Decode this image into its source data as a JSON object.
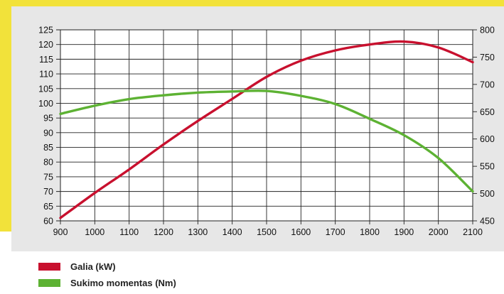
{
  "chart_data": {
    "type": "line",
    "x": [
      900,
      1000,
      1100,
      1200,
      1300,
      1400,
      1500,
      1600,
      1700,
      1800,
      1900,
      2000,
      2100
    ],
    "xlim": [
      900,
      2100
    ],
    "ylim_left": [
      60,
      125
    ],
    "ylim_right": [
      450,
      800
    ],
    "x_ticks": [
      900,
      1000,
      1100,
      1200,
      1300,
      1400,
      1500,
      1600,
      1700,
      1800,
      1900,
      2000,
      2100
    ],
    "y_left_ticks": [
      60,
      65,
      70,
      75,
      80,
      85,
      90,
      95,
      100,
      105,
      110,
      115,
      120,
      125
    ],
    "y_right_ticks": [
      450,
      500,
      550,
      600,
      650,
      700,
      750,
      800
    ],
    "grid": true,
    "series": [
      {
        "name": "Galia (kW)",
        "axis": "left",
        "color": "#c8102e",
        "values": [
          61,
          69.5,
          77.5,
          86,
          94,
          101.5,
          109,
          114.5,
          118,
          120,
          121,
          119,
          114
        ]
      },
      {
        "name": "Sukimo momentas (Nm)",
        "axis": "right",
        "color": "#5db233",
        "values": [
          646,
          661,
          673,
          680,
          685,
          687,
          688,
          679,
          664,
          637,
          607,
          565,
          504
        ]
      }
    ]
  },
  "legend": {
    "items": [
      {
        "label": "Galia (kW)",
        "color": "#c8102e"
      },
      {
        "label": "Sukimo momentas (Nm)",
        "color": "#5db233"
      }
    ]
  }
}
